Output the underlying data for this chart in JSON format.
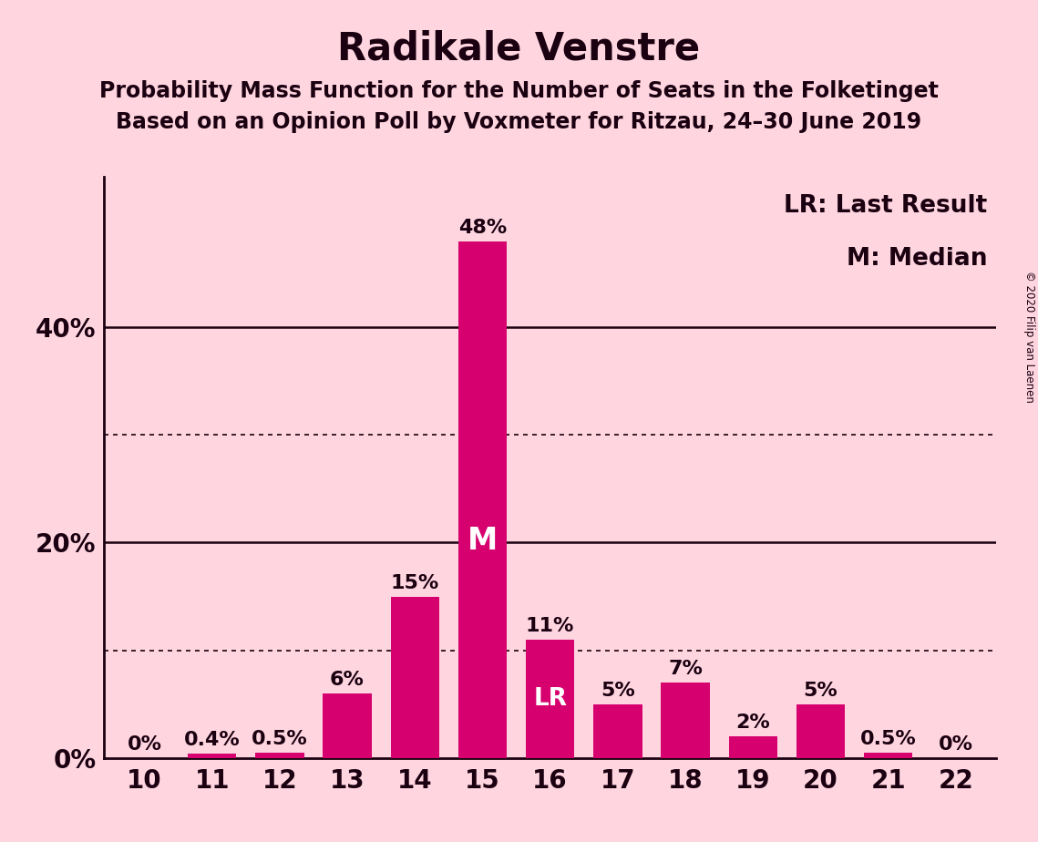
{
  "title": "Radikale Venstre",
  "subtitle1": "Probability Mass Function for the Number of Seats in the Folketinget",
  "subtitle2": "Based on an Opinion Poll by Voxmeter for Ritzau, 24–30 June 2019",
  "copyright": "© 2020 Filip van Laenen",
  "categories": [
    10,
    11,
    12,
    13,
    14,
    15,
    16,
    17,
    18,
    19,
    20,
    21,
    22
  ],
  "values": [
    0.0,
    0.4,
    0.5,
    6.0,
    15.0,
    48.0,
    11.0,
    5.0,
    7.0,
    2.0,
    5.0,
    0.5,
    0.0
  ],
  "labels": [
    "0%",
    "0.4%",
    "0.5%",
    "6%",
    "15%",
    "48%",
    "11%",
    "5%",
    "7%",
    "2%",
    "5%",
    "0.5%",
    "0%"
  ],
  "bar_color": "#d6006e",
  "background_color": "#ffd6e0",
  "text_color": "#1a0010",
  "title_fontsize": 30,
  "subtitle_fontsize": 17,
  "axis_tick_fontsize": 20,
  "bar_label_fontsize": 16,
  "legend_fontsize": 19,
  "median_seat": 15,
  "last_result_seat": 16,
  "median_label": "M",
  "last_result_label": "LR",
  "legend_lr": "LR: Last Result",
  "legend_m": "M: Median",
  "yticks": [
    0,
    20,
    40
  ],
  "ytick_labels": [
    "0%",
    "20%",
    "40%"
  ],
  "dotted_lines": [
    10,
    30
  ],
  "solid_lines": [
    20,
    40
  ],
  "ylim": [
    0,
    54
  ]
}
